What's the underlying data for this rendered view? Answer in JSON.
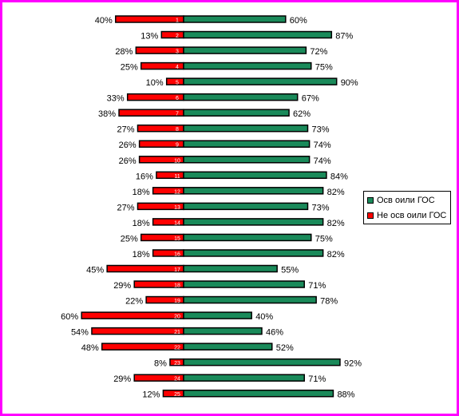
{
  "colors": {
    "frame": "#ff00ff",
    "positive": "#1a8a5a",
    "negative": "#ff0000"
  },
  "chart_data": {
    "type": "bar",
    "orientation": "horizontal-diverging",
    "categories": [
      "1",
      "2",
      "3",
      "4",
      "5",
      "6",
      "7",
      "8",
      "9",
      "10",
      "11",
      "12",
      "13",
      "14",
      "15",
      "16",
      "17",
      "18",
      "19",
      "20",
      "21",
      "22",
      "23",
      "24",
      "25"
    ],
    "series": [
      {
        "name": "Осв оили ГОС",
        "color": "#1a8a5a",
        "values": [
          60,
          87,
          72,
          75,
          90,
          67,
          62,
          73,
          74,
          74,
          84,
          82,
          73,
          82,
          75,
          82,
          55,
          71,
          78,
          40,
          46,
          52,
          92,
          71,
          88
        ]
      },
      {
        "name": "Не осв оили ГОС",
        "color": "#ff0000",
        "values": [
          40,
          13,
          28,
          25,
          10,
          33,
          38,
          27,
          26,
          26,
          16,
          18,
          27,
          18,
          25,
          18,
          45,
          29,
          22,
          60,
          54,
          48,
          8,
          29,
          12
        ]
      }
    ],
    "value_suffix": "%",
    "xlim": [
      -60,
      92
    ],
    "legend": "right",
    "grid": false
  }
}
